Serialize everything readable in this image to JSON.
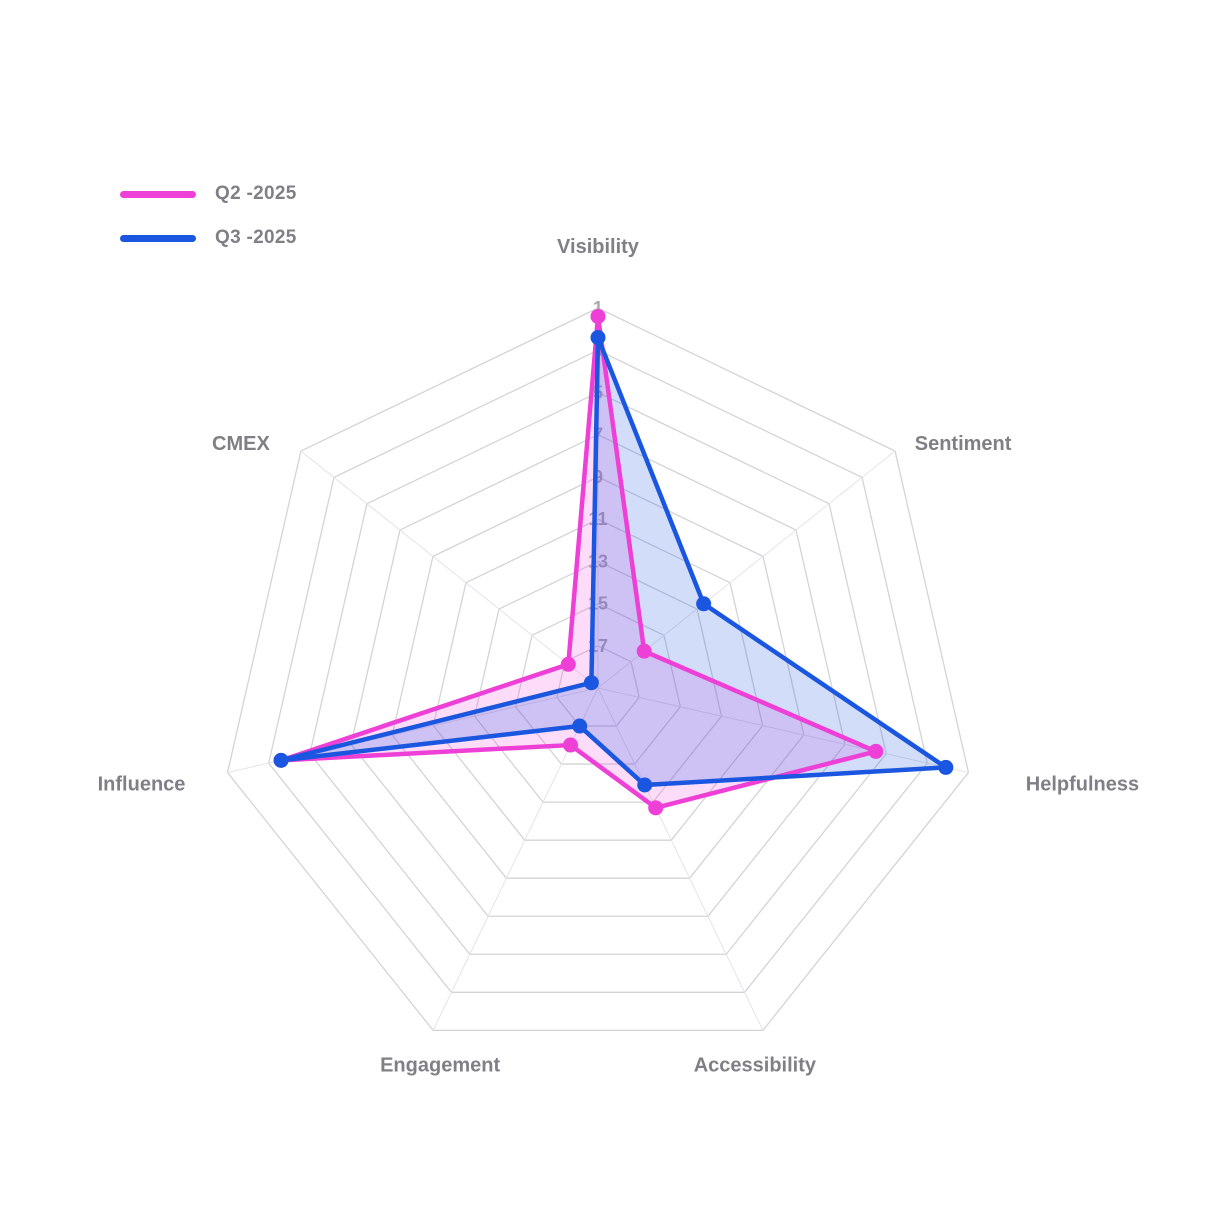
{
  "chart_data": {
    "type": "radar",
    "axes": [
      "Visibility",
      "Sentiment",
      "Helpfulness",
      "Accessibility",
      "Engagement",
      "Influence",
      "CMEX"
    ],
    "radial_ticks": [
      "1",
      "3",
      "5",
      "7",
      "9",
      "11",
      "13",
      "15",
      "17"
    ],
    "radial_range": [
      1,
      19
    ],
    "radial_reversed": true,
    "grid": true,
    "legend_position": "top-left",
    "series": [
      {
        "name": "Q2 -2025",
        "color": "#ee3fd6",
        "fill": "rgba(238,63,214,0.18)",
        "values": [
          1.4,
          16.2,
          5.5,
          12.7,
          16.0,
          3.6,
          17.2
        ]
      },
      {
        "name": "Q3 -2025",
        "color": "#1a56e0",
        "fill": "rgba(26,86,224,0.20)",
        "values": [
          2.4,
          12.6,
          2.1,
          13.9,
          17.0,
          3.6,
          18.6
        ]
      }
    ]
  }
}
